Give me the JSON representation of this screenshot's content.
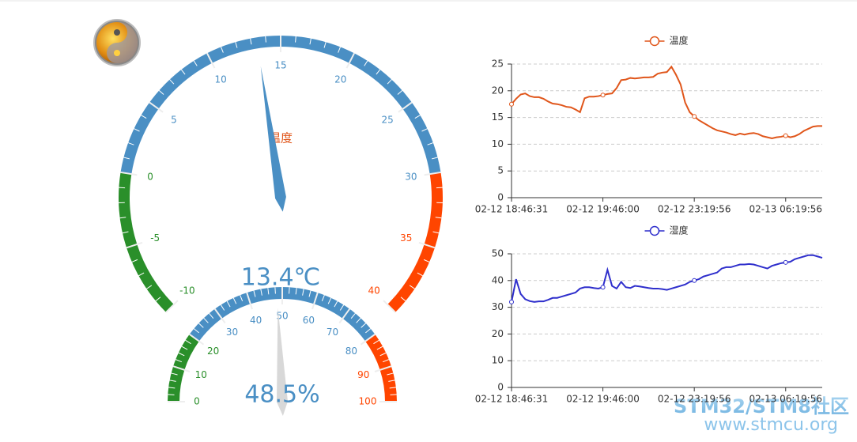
{
  "chart_data": [
    {
      "type": "gauge",
      "title": "温度",
      "lim": [
        -10,
        40
      ],
      "ticks": [
        -10,
        -5,
        0,
        5,
        10,
        15,
        20,
        25,
        30,
        35,
        40
      ],
      "value": 13.4,
      "value_label": "13.4℃",
      "pointer_color": "#4a8fc4",
      "bands": [
        {
          "to": 0,
          "color": "#2a8f2a"
        },
        {
          "to": 30,
          "color": "#4a8fc4"
        },
        {
          "to": 40,
          "color": "#ff4500"
        }
      ]
    },
    {
      "type": "gauge",
      "lim": [
        0,
        100
      ],
      "ticks": [
        0,
        10,
        20,
        30,
        40,
        50,
        60,
        70,
        80,
        90,
        100
      ],
      "value": 48.5,
      "value_label": "48.5%",
      "pointer_color": "#d8d8d8",
      "bands": [
        {
          "to": 20,
          "color": "#2a8f2a"
        },
        {
          "to": 80,
          "color": "#4a8fc4"
        },
        {
          "to": 100,
          "color": "#ff4500"
        }
      ]
    },
    {
      "type": "line",
      "ylim": [
        0,
        25
      ],
      "yticks": [
        0,
        5,
        10,
        15,
        20,
        25
      ],
      "grid": true,
      "categories": [
        "02-12 18:46:31",
        null,
        null,
        null,
        null,
        null,
        null,
        null,
        null,
        null,
        null,
        null,
        null,
        null,
        null,
        null,
        null,
        null,
        null,
        null,
        "02-12 19:46:00",
        null,
        null,
        null,
        null,
        null,
        null,
        null,
        null,
        null,
        null,
        null,
        null,
        null,
        null,
        null,
        null,
        null,
        null,
        null,
        "02-12 23:19:56",
        null,
        null,
        null,
        null,
        null,
        null,
        null,
        null,
        null,
        null,
        null,
        null,
        null,
        null,
        null,
        null,
        null,
        null,
        null,
        "02-13 06:19:56",
        null,
        null,
        null,
        null,
        null,
        null,
        null,
        null
      ],
      "series": [
        {
          "name": "温度",
          "color": "#e0561b",
          "values": [
            17.5,
            18.5,
            19.3,
            19.5,
            19.0,
            18.8,
            18.8,
            18.5,
            18.0,
            17.6,
            17.5,
            17.3,
            17.0,
            16.9,
            16.5,
            16.0,
            18.6,
            18.9,
            18.9,
            19.0,
            19.2,
            19.4,
            19.5,
            20.5,
            22.0,
            22.1,
            22.4,
            22.3,
            22.4,
            22.5,
            22.5,
            22.6,
            23.2,
            23.4,
            23.5,
            24.5,
            23.0,
            21.2,
            17.8,
            16.0,
            15.2,
            14.5,
            14.0,
            13.5,
            13.0,
            12.6,
            12.4,
            12.2,
            11.9,
            11.7,
            12.0,
            11.8,
            12.0,
            12.1,
            11.9,
            11.5,
            11.3,
            11.1,
            11.3,
            11.4,
            11.6,
            11.3,
            11.5,
            11.9,
            12.5,
            12.9,
            13.3,
            13.4,
            13.4
          ]
        }
      ]
    },
    {
      "type": "line",
      "ylim": [
        0,
        50
      ],
      "yticks": [
        0,
        10,
        20,
        30,
        40,
        50
      ],
      "grid": true,
      "categories": [
        "02-12 18:46:31",
        null,
        null,
        null,
        null,
        null,
        null,
        null,
        null,
        null,
        null,
        null,
        null,
        null,
        null,
        null,
        null,
        null,
        null,
        null,
        "02-12 19:46:00",
        null,
        null,
        null,
        null,
        null,
        null,
        null,
        null,
        null,
        null,
        null,
        null,
        null,
        null,
        null,
        null,
        null,
        null,
        null,
        "02-12 23:19:56",
        null,
        null,
        null,
        null,
        null,
        null,
        null,
        null,
        null,
        null,
        null,
        null,
        null,
        null,
        null,
        null,
        null,
        null,
        null,
        "02-13 06:19:56",
        null,
        null,
        null,
        null,
        null,
        null,
        null,
        null
      ],
      "series": [
        {
          "name": "湿度",
          "color": "#2f2fcc",
          "values": [
            32,
            40.5,
            35,
            33,
            32.3,
            32,
            32.2,
            32.2,
            32.8,
            33.5,
            33.5,
            34,
            34.5,
            35,
            35.5,
            37,
            37.5,
            37.5,
            37.2,
            37,
            37.5,
            44,
            38,
            37,
            39.5,
            37.5,
            37.2,
            38,
            37.8,
            37.5,
            37.2,
            37,
            37,
            36.8,
            36.5,
            37,
            37.5,
            38,
            38.5,
            39.5,
            40,
            40.5,
            41.5,
            42,
            42.5,
            43,
            44.5,
            45,
            45,
            45.5,
            46,
            46,
            46.2,
            46,
            45.5,
            45,
            44.5,
            45.5,
            46,
            46.5,
            46.8,
            47,
            48,
            48.5,
            49,
            49.5,
            49.5,
            49,
            48.5
          ]
        }
      ]
    }
  ],
  "watermark": {
    "line1": "STM32/STM8社区",
    "line2": "www.stmcu.org"
  }
}
